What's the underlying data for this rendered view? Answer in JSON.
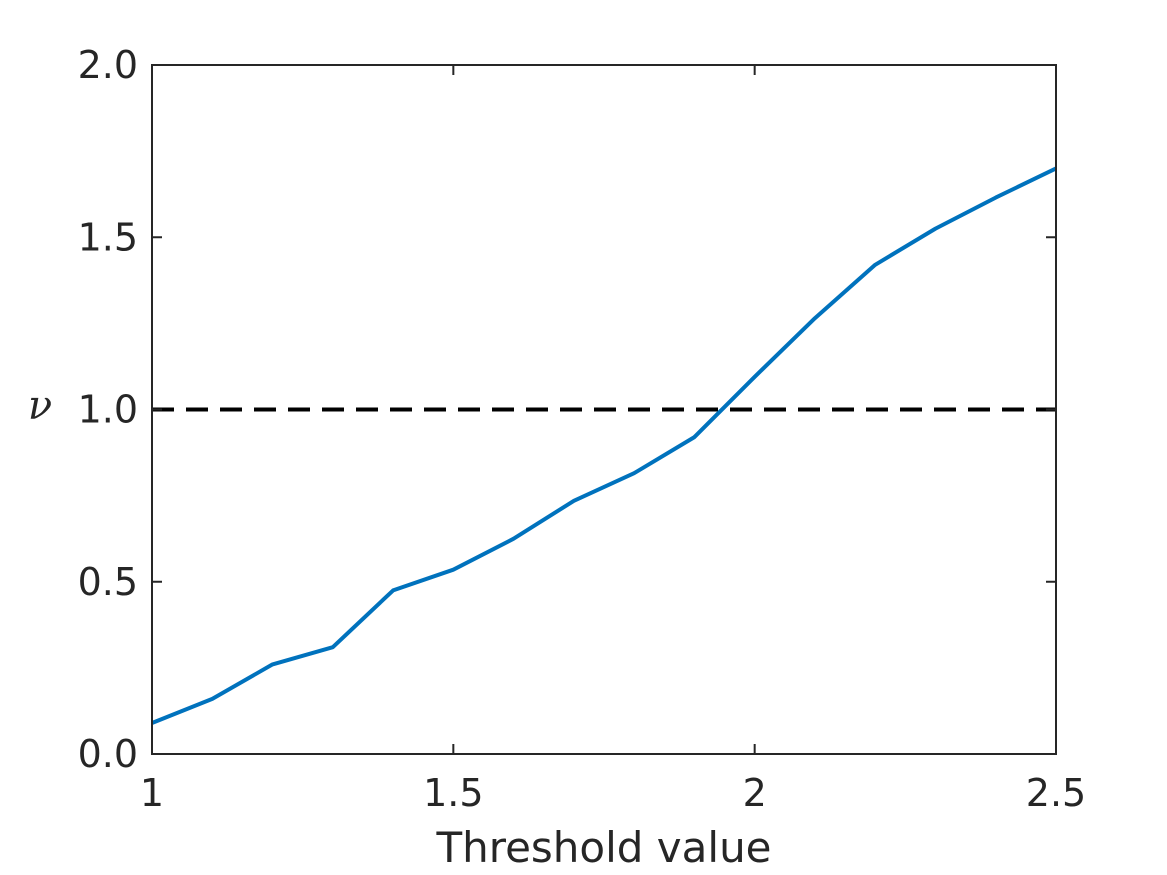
{
  "chart_data": {
    "type": "line",
    "title": "",
    "xlabel": "Threshold value",
    "ylabel": "ν",
    "xlim": [
      1,
      2.5
    ],
    "ylim": [
      0,
      2
    ],
    "x_ticks": [
      1,
      1.5,
      2,
      2.5
    ],
    "x_tick_labels": [
      "1",
      "1.5",
      "2",
      "2.5"
    ],
    "y_ticks": [
      0,
      0.5,
      1,
      1.5,
      2
    ],
    "y_tick_labels": [
      "0.0",
      "0.5",
      "1.0",
      "1.5",
      "2.0"
    ],
    "grid": false,
    "legend": "none",
    "series": [
      {
        "color": "#0072bd",
        "style": "solid",
        "x": [
          1.0,
          1.1,
          1.2,
          1.3,
          1.4,
          1.5,
          1.6,
          1.7,
          1.8,
          1.9,
          2.0,
          2.1,
          2.2,
          2.3,
          2.4,
          2.5
        ],
        "y": [
          0.09,
          0.16,
          0.26,
          0.31,
          0.475,
          0.535,
          0.625,
          0.735,
          0.815,
          0.92,
          1.095,
          1.265,
          1.42,
          1.525,
          1.615,
          1.7
        ]
      }
    ],
    "reference_lines": [
      {
        "orientation": "horizontal",
        "y": 1.0,
        "color": "#000000",
        "style": "dashed"
      }
    ]
  }
}
